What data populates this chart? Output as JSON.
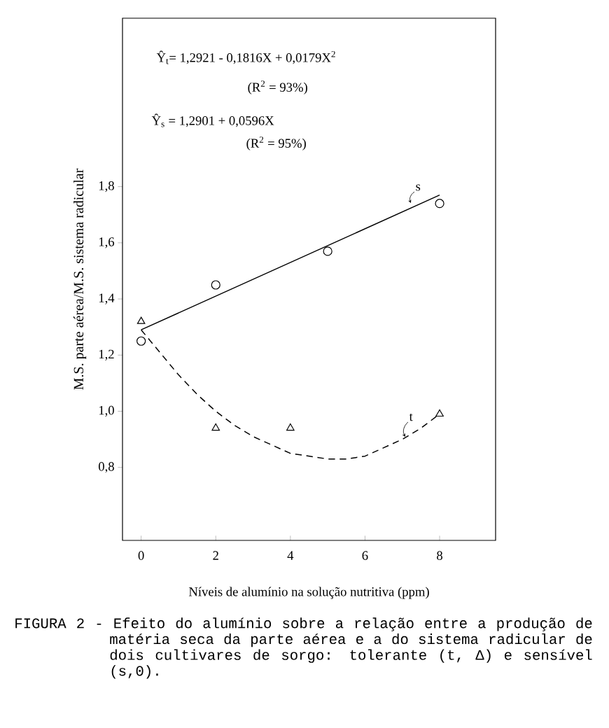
{
  "chart_data": {
    "type": "scatter",
    "xlabel": "Níveis de alumínio na solução nutritiva (ppm)",
    "ylabel": "M.S. parte aérea/M.S. sistema radicular",
    "xlim": [
      -0.5,
      9.5
    ],
    "ylim": [
      0.54,
      2.4
    ],
    "xticks": [
      0,
      2,
      4,
      6,
      8
    ],
    "yticks": [
      {
        "value": 0.8,
        "label": "0,8"
      },
      {
        "value": 1.0,
        "label": "1,0"
      },
      {
        "value": 1.2,
        "label": "1,2"
      },
      {
        "value": 1.4,
        "label": "1,4"
      },
      {
        "value": 1.6,
        "label": "1,6"
      },
      {
        "value": 1.8,
        "label": "1,8"
      }
    ],
    "series": [
      {
        "marker": "circle",
        "color": "#000000",
        "x": [
          0,
          2,
          5,
          8
        ],
        "values": [
          1.25,
          1.45,
          1.57,
          1.74
        ]
      },
      {
        "marker": "triangle",
        "color": "#000000",
        "x": [
          0,
          2,
          4,
          8
        ],
        "values": [
          1.32,
          0.94,
          0.94,
          0.99
        ]
      },
      {
        "type": "line",
        "marker": "none",
        "line_style": "solid",
        "color": "#000000",
        "x": [
          0,
          8
        ],
        "values": [
          1.29,
          1.77
        ]
      },
      {
        "type": "line",
        "marker": "none",
        "line_style": "dashed",
        "color": "#000000",
        "x": [
          0,
          0.5,
          1,
          1.5,
          2,
          2.5,
          3,
          3.5,
          4,
          4.5,
          5,
          5.5,
          6,
          6.5,
          7,
          7.5,
          8
        ],
        "values": [
          1.29,
          1.21,
          1.13,
          1.06,
          1.0,
          0.95,
          0.91,
          0.88,
          0.85,
          0.84,
          0.83,
          0.83,
          0.84,
          0.87,
          0.9,
          0.94,
          0.99
        ]
      }
    ],
    "annotations": [
      "Ŷ$_{t}$= 1,2921 - 0,1816X + 0,0179X$^{2}$",
      "(R$^{2}$ = 93%)",
      "Ŷ$_{s}$ = 1,2901 + 0,0596X",
      "(R$^{2}$ = 95%)",
      "s",
      "t",
      "FIGURA 2 - Efeito do alumínio sobre a relação entre a produção de matéria seca da parte aérea e a do sistema radicular de dois cultivares de sorgo: tolerante (t, Δ) e sensível (s,0)."
    ]
  }
}
